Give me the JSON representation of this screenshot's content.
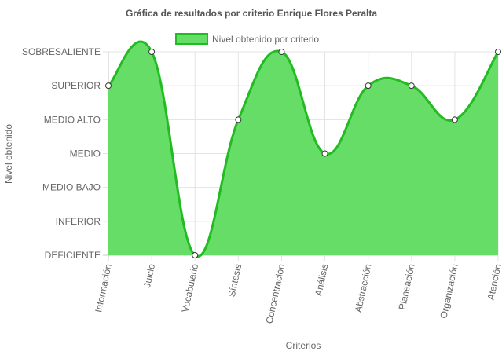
{
  "chart_data": {
    "type": "area",
    "title": "Gráfica de resultados por criterio Enrique Flores Peralta",
    "xlabel": "Criterios",
    "ylabel": "Nivel obtenido",
    "legend_position": "top",
    "y_levels": [
      "DEFICIENTE",
      "INFERIOR",
      "MEDIO BAJO",
      "MEDIO",
      "MEDIO ALTO",
      "SUPERIOR",
      "SOBRESALIENTE"
    ],
    "categories": [
      "Información",
      "Juicio",
      "Vocabulario",
      "Síntesis",
      "Concentración",
      "Análisis",
      "Abstracción",
      "Planeación",
      "Organización",
      "Atención"
    ],
    "series": [
      {
        "name": "Nivel obtenido por criterio",
        "values": [
          "SUPERIOR",
          "SOBRESALIENTE",
          "DEFICIENTE",
          "MEDIO ALTO",
          "SOBRESALIENTE",
          "MEDIO",
          "SUPERIOR",
          "SUPERIOR",
          "MEDIO ALTO",
          "SOBRESALIENTE"
        ],
        "fill_color": "#66dd66",
        "line_color": "#22bb22"
      }
    ],
    "grid": true
  }
}
